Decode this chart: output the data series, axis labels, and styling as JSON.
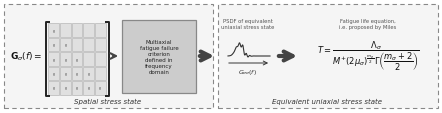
{
  "bg_color": "#f5f5f5",
  "outer_box_color": "#999999",
  "multi_box_color": "#cccccc",
  "text_color": "#333333",
  "label_left": "Spatial stress state",
  "label_right": "Equivalent uniaxial stress state",
  "box2_text": "Multiaxial\nfatigue failure\ncriterion\ndefined in\nfrequency\ndomain",
  "psdf_label": "PSDF of equivalent\nuniaxial stress state",
  "fatigue_label": "Fatigue life equation,\ni.e. proposed by Miles",
  "Gsigma_sub": "$G_{\\sigma\\sigma}(f)$",
  "Gsigma_main": "$\\mathbf{G}_{\\sigma}(f)=$",
  "miles_eq": "$T=\\dfrac{\\Lambda_{\\sigma}}{M^{+}(2\\mu_{\\sigma})^{\\frac{m_{\\sigma}}{2}}\\,\\Gamma\\!\\left(\\dfrac{m_{\\sigma}+2}{2}\\right)}$"
}
